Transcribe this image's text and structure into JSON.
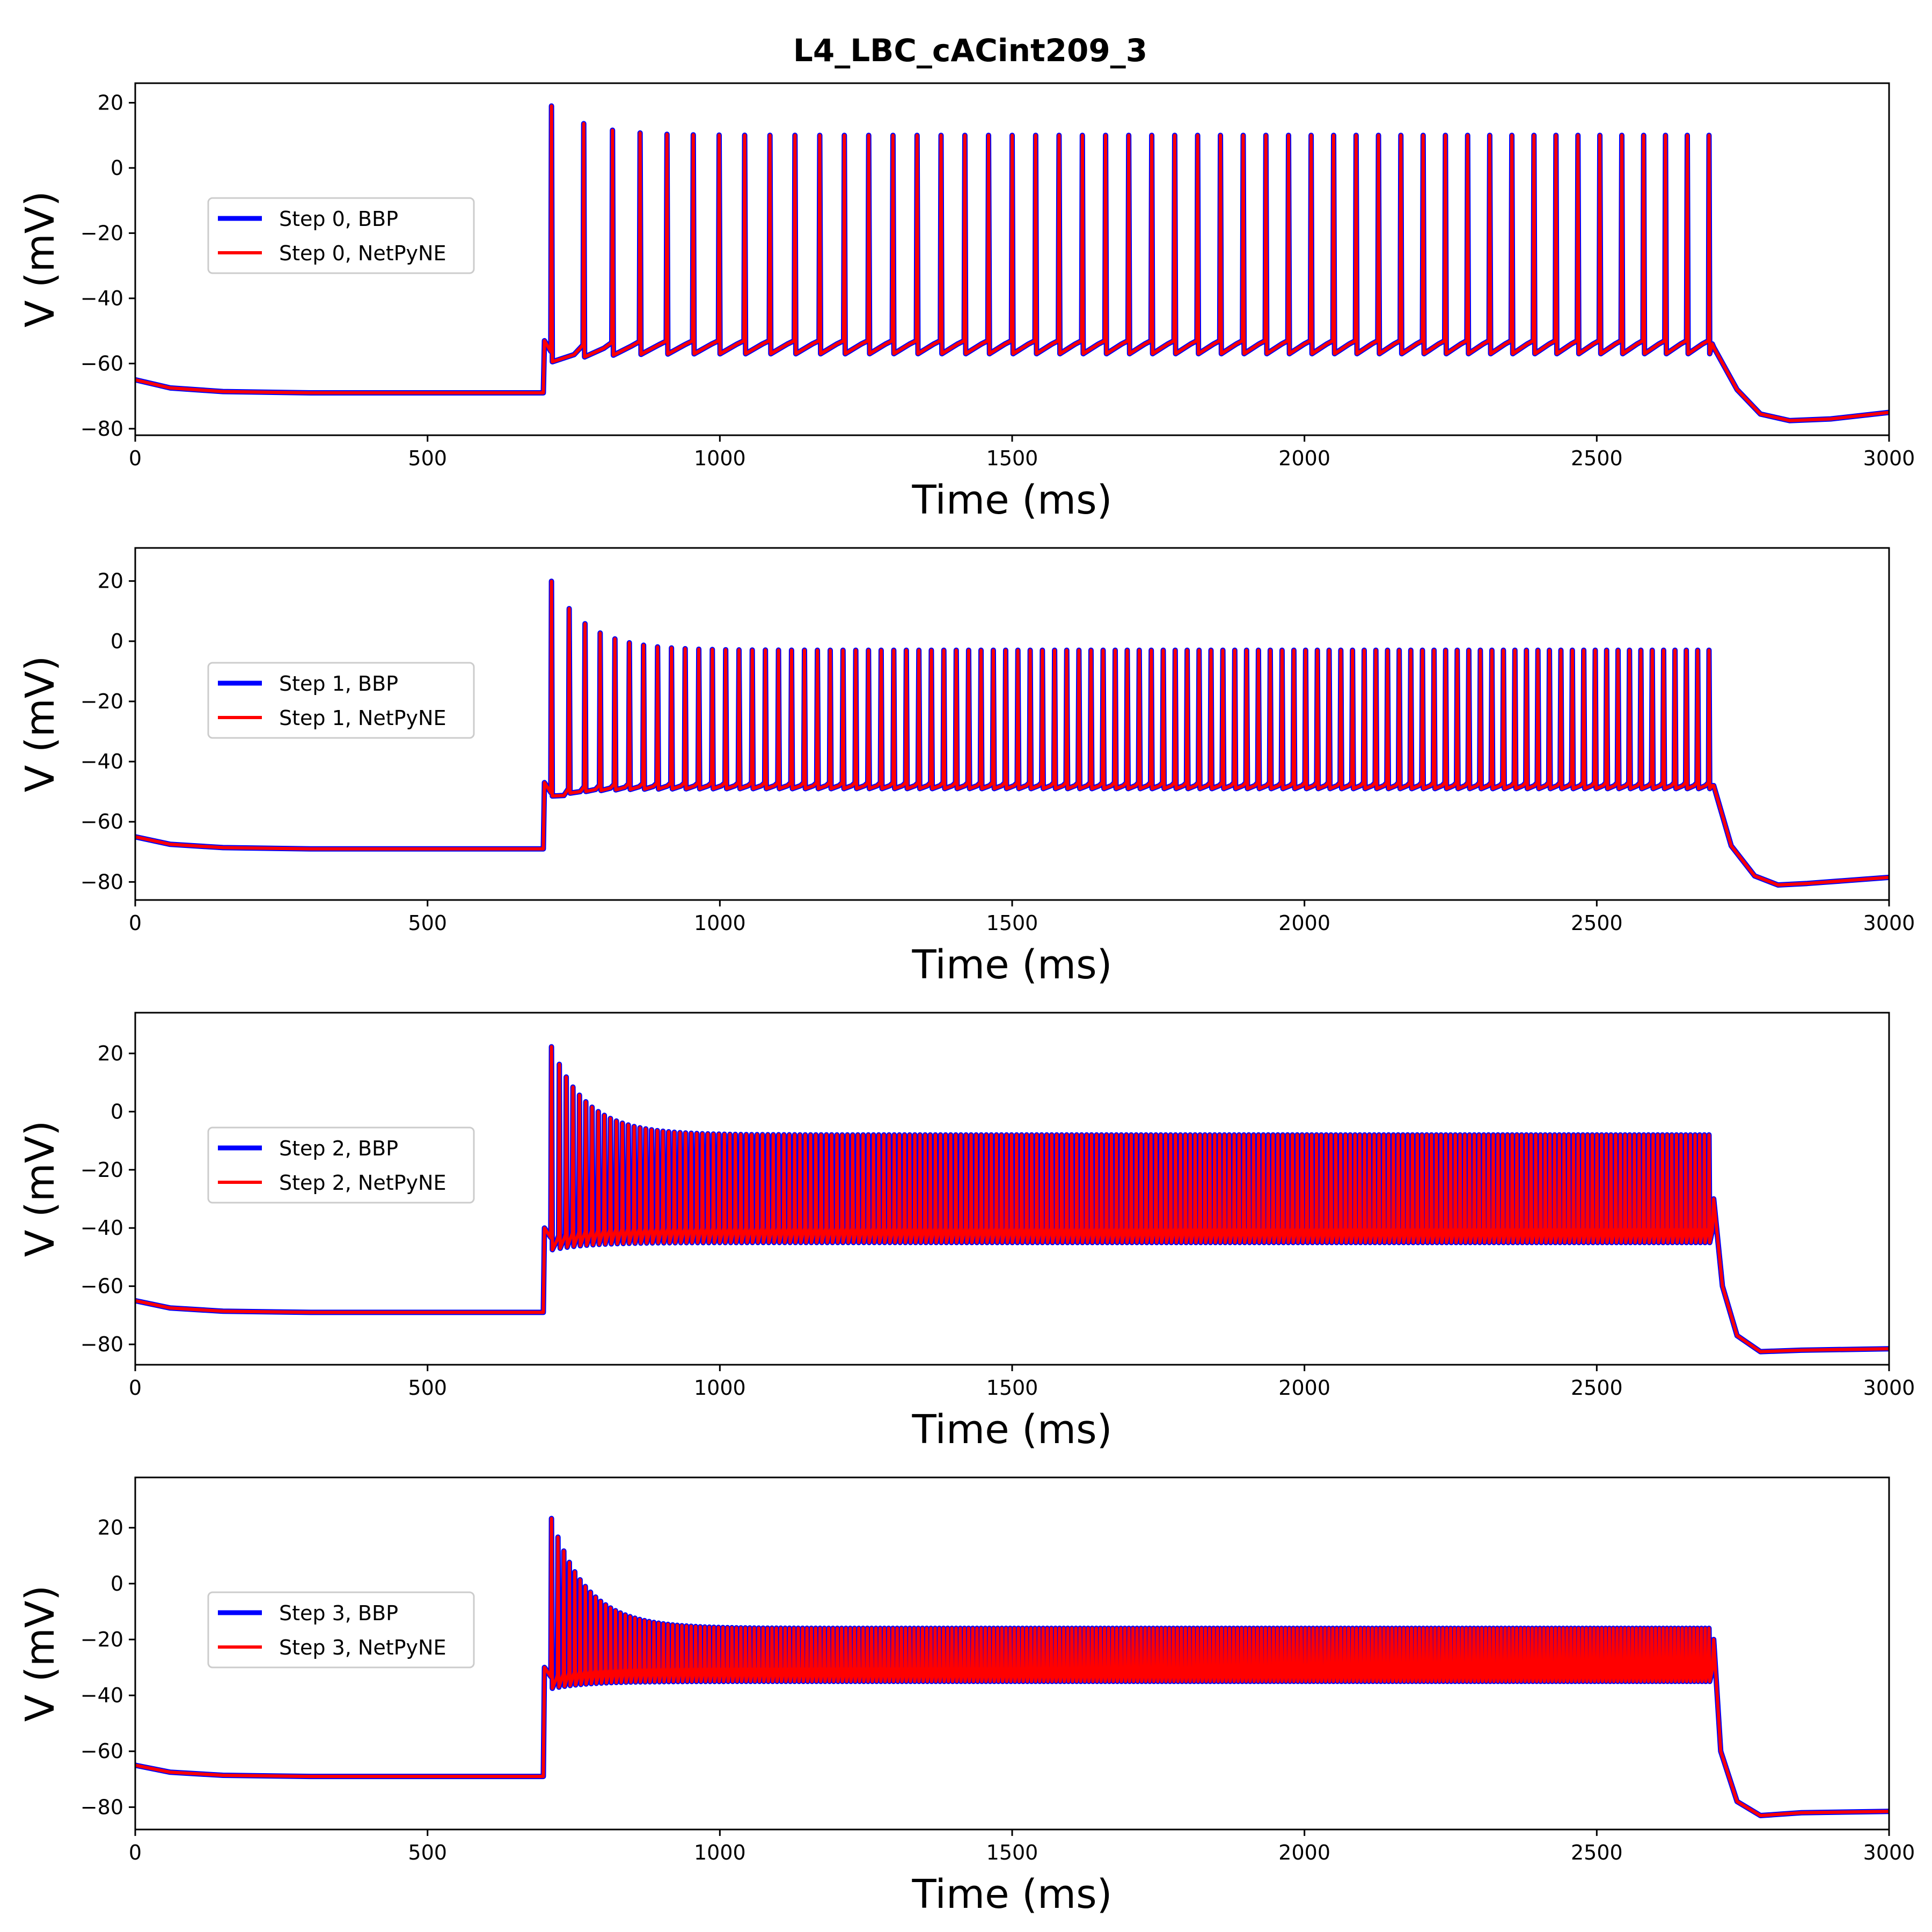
{
  "figure": {
    "title": "L4_LBC_cACint209_3"
  },
  "colors": {
    "bbp": "#0000ff",
    "netpyne": "#ff0000",
    "axis": "#000000",
    "background": "#ffffff"
  },
  "chart_data": [
    {
      "type": "line",
      "xlabel": "Time (ms)",
      "ylabel": "V (mV)",
      "xlim": [
        0,
        3000
      ],
      "ylim": [
        -82,
        26
      ],
      "xticks": [
        0,
        500,
        1000,
        1500,
        2000,
        2500,
        3000
      ],
      "yticks": [
        -80,
        -60,
        -40,
        -20,
        0,
        20
      ],
      "grid": false,
      "legend_position": "center-left",
      "series": [
        {
          "name": "Step 0, BBP",
          "color": "#0000ff"
        },
        {
          "name": "Step 0, NetPyNE",
          "color": "#ff0000"
        }
      ],
      "trace": {
        "rest": [
          [
            0,
            -65
          ],
          [
            60,
            -67.5
          ],
          [
            150,
            -68.6
          ],
          [
            300,
            -69
          ],
          [
            698,
            -69
          ]
        ],
        "stim_on": 700,
        "stim_off": 2700,
        "spike_count": 50,
        "first_peak": 21,
        "steady_peak": 10,
        "trough": -57,
        "pre_spike": -53,
        "tail": [
          [
            2700,
            -55
          ],
          [
            2740,
            -68
          ],
          [
            2780,
            -75.5
          ],
          [
            2830,
            -77.5
          ],
          [
            2900,
            -77
          ],
          [
            3000,
            -75
          ]
        ]
      }
    },
    {
      "type": "line",
      "xlabel": "Time (ms)",
      "ylabel": "V (mV)",
      "xlim": [
        0,
        3000
      ],
      "ylim": [
        -86,
        31
      ],
      "xticks": [
        0,
        500,
        1000,
        1500,
        2000,
        2500,
        3000
      ],
      "yticks": [
        -80,
        -60,
        -40,
        -20,
        0,
        20
      ],
      "grid": false,
      "legend_position": "center-left",
      "series": [
        {
          "name": "Step 1, BBP",
          "color": "#0000ff"
        },
        {
          "name": "Step 1, NetPyNE",
          "color": "#ff0000"
        }
      ],
      "trace": {
        "rest": [
          [
            0,
            -65
          ],
          [
            60,
            -67.5
          ],
          [
            150,
            -68.6
          ],
          [
            300,
            -69
          ],
          [
            698,
            -69
          ]
        ],
        "stim_on": 700,
        "stim_off": 2700,
        "spike_count": 95,
        "first_peak": 25,
        "steady_peak": -3,
        "trough": -49,
        "pre_spike": -47,
        "tail": [
          [
            2700,
            -48
          ],
          [
            2730,
            -68
          ],
          [
            2770,
            -78
          ],
          [
            2810,
            -81
          ],
          [
            2860,
            -80.5
          ],
          [
            3000,
            -78.5
          ]
        ]
      }
    },
    {
      "type": "line",
      "xlabel": "Time (ms)",
      "ylabel": "V (mV)",
      "xlim": [
        0,
        3000
      ],
      "ylim": [
        -87,
        34
      ],
      "xticks": [
        0,
        500,
        1000,
        1500,
        2000,
        2500,
        3000
      ],
      "yticks": [
        -80,
        -60,
        -40,
        -20,
        0,
        20
      ],
      "grid": false,
      "legend_position": "center-left",
      "series": [
        {
          "name": "Step 2, BBP",
          "color": "#0000ff"
        },
        {
          "name": "Step 2, NetPyNE",
          "color": "#ff0000"
        }
      ],
      "trace": {
        "rest": [
          [
            0,
            -65
          ],
          [
            60,
            -67.5
          ],
          [
            150,
            -68.6
          ],
          [
            300,
            -69
          ],
          [
            698,
            -69
          ]
        ],
        "stim_on": 700,
        "stim_off": 2700,
        "spike_count": 230,
        "first_peak": 29,
        "steady_peak": -8,
        "trough": -45,
        "pre_spike": -40,
        "tail": [
          [
            2700,
            -30
          ],
          [
            2715,
            -60
          ],
          [
            2740,
            -77
          ],
          [
            2780,
            -82.5
          ],
          [
            2850,
            -82
          ],
          [
            3000,
            -81.5
          ]
        ]
      }
    },
    {
      "type": "line",
      "xlabel": "Time (ms)",
      "ylabel": "V (mV)",
      "xlim": [
        0,
        3000
      ],
      "ylim": [
        -88,
        38
      ],
      "xticks": [
        0,
        500,
        1000,
        1500,
        2000,
        2500,
        3000
      ],
      "yticks": [
        -80,
        -60,
        -40,
        -20,
        0,
        20
      ],
      "grid": false,
      "legend_position": "center-left",
      "series": [
        {
          "name": "Step 3, BBP",
          "color": "#0000ff"
        },
        {
          "name": "Step 3, NetPyNE",
          "color": "#ff0000"
        }
      ],
      "trace": {
        "rest": [
          [
            0,
            -65
          ],
          [
            60,
            -67.5
          ],
          [
            150,
            -68.6
          ],
          [
            300,
            -69
          ],
          [
            698,
            -69
          ]
        ],
        "stim_on": 700,
        "stim_off": 2700,
        "spike_count": 280,
        "first_peak": 32,
        "steady_peak": -16,
        "trough": -35,
        "pre_spike": -30,
        "tail": [
          [
            2700,
            -20
          ],
          [
            2712,
            -60
          ],
          [
            2740,
            -78
          ],
          [
            2780,
            -83
          ],
          [
            2850,
            -82
          ],
          [
            3000,
            -81.5
          ]
        ]
      }
    }
  ]
}
